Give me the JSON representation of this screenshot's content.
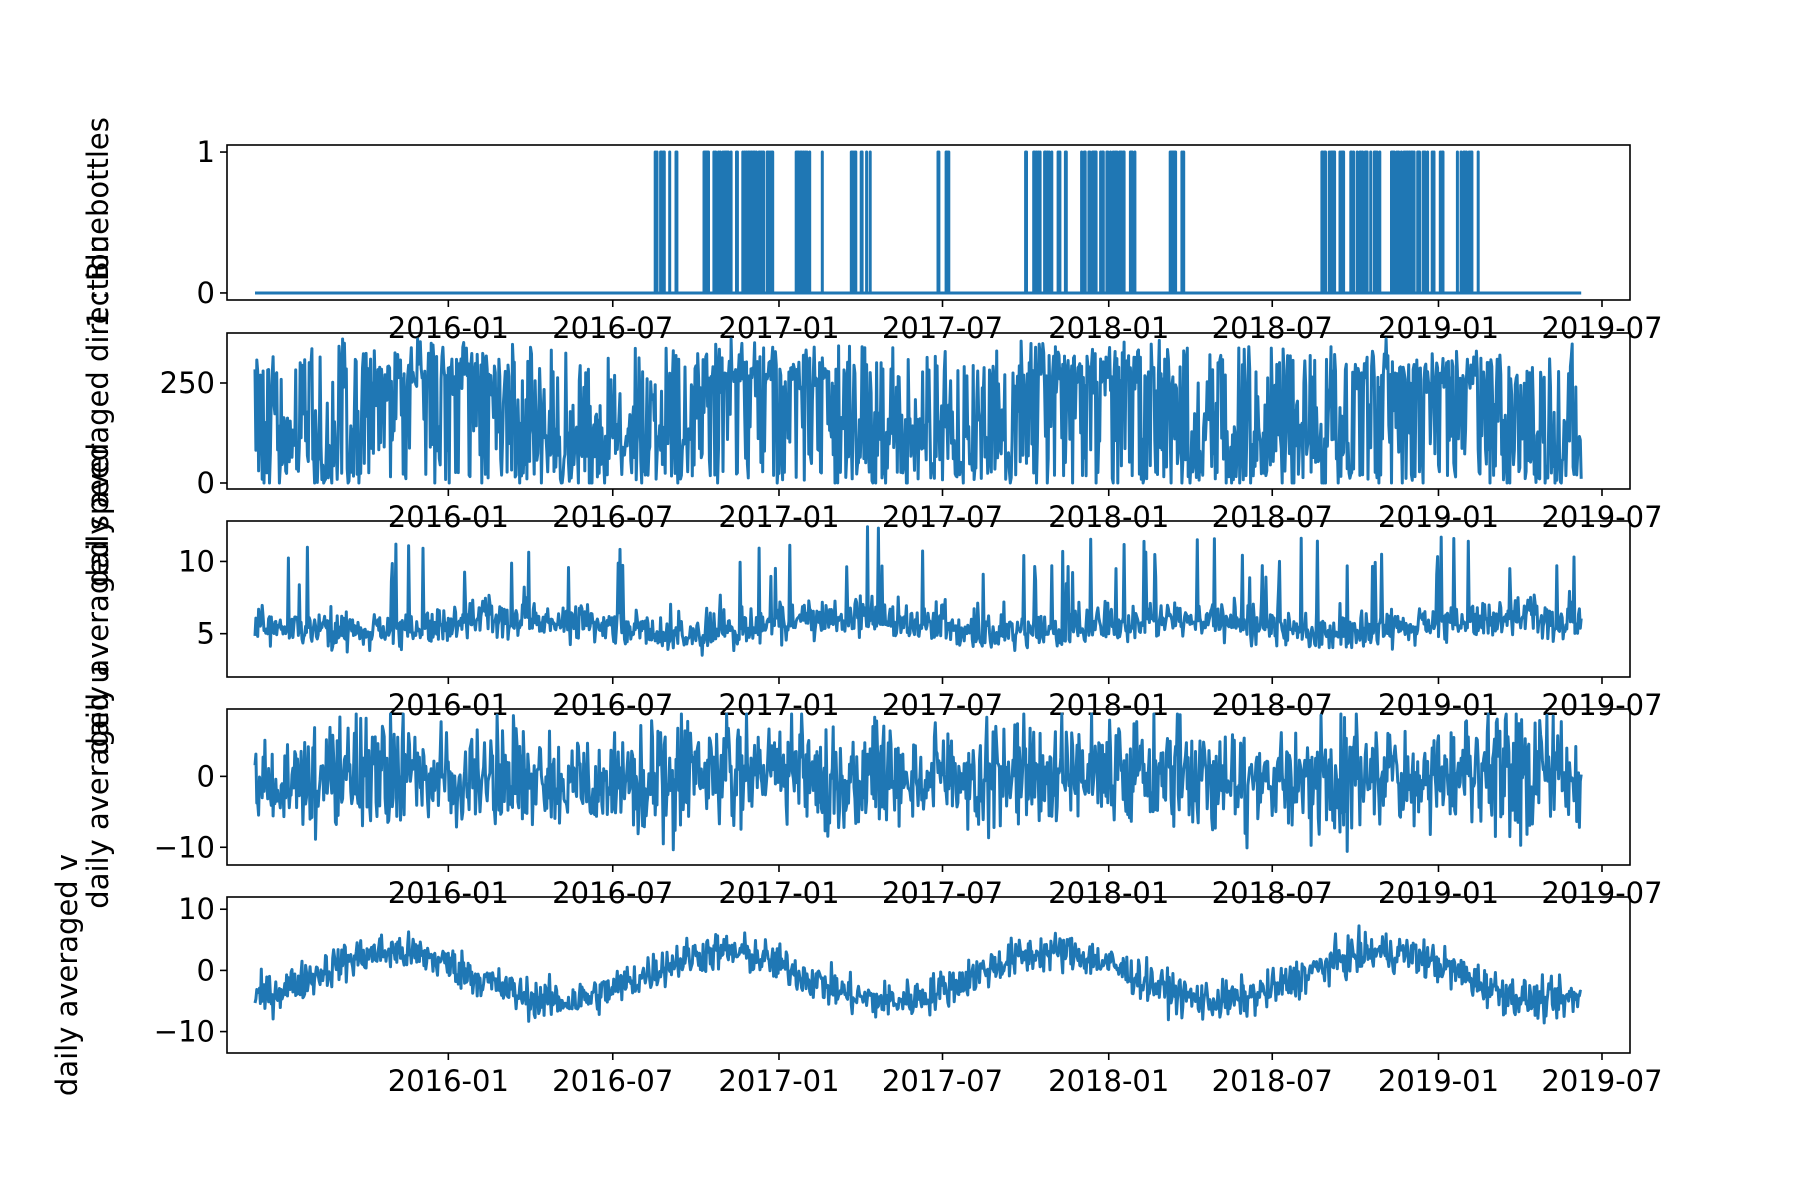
{
  "colors": {
    "line": "#1f77b4",
    "axis": "#000000",
    "background": "#ffffff"
  },
  "x_axis": {
    "type": "date",
    "range": [
      "2015-05-01",
      "2019-08-01"
    ],
    "ticks": [
      "2016-01",
      "2016-07",
      "2017-01",
      "2017-07",
      "2018-01",
      "2018-07",
      "2019-01",
      "2019-07"
    ],
    "tick_dates": [
      "2016-01-01",
      "2016-07-01",
      "2017-01-01",
      "2017-07-01",
      "2018-01-01",
      "2018-07-01",
      "2019-01-01",
      "2019-07-01"
    ],
    "data_start": "2015-06-01",
    "data_end": "2019-06-08"
  },
  "chart_data": [
    {
      "type": "line",
      "ylabel": "1 : Bluebottles",
      "ylim": [
        -0.05,
        1.05
      ],
      "yticks": [
        0,
        1
      ],
      "ytick_labels": [
        "0",
        "1"
      ],
      "style": "binary",
      "y_min": 0,
      "y_max": 1,
      "event_groups": [
        [
          "2016-08-17",
          "2016-09-10"
        ],
        [
          "2016-10-10",
          "2016-12-25"
        ],
        [
          "2017-01-20",
          "2017-02-18"
        ],
        [
          "2017-03-22",
          "2017-04-12"
        ],
        [
          "2017-06-26",
          "2017-07-08"
        ],
        [
          "2017-10-01",
          "2017-11-15"
        ],
        [
          "2017-12-02",
          "2018-01-30"
        ],
        [
          "2018-03-10",
          "2018-03-25"
        ],
        [
          "2018-08-25",
          "2018-10-28"
        ],
        [
          "2018-11-10",
          "2019-01-06"
        ],
        [
          "2019-01-22",
          "2019-02-14"
        ]
      ]
    },
    {
      "type": "line",
      "ylabel": "daily averaged direction",
      "ylim": [
        -15,
        375
      ],
      "yticks": [
        0,
        250
      ],
      "ytick_labels": [
        "0",
        "250"
      ],
      "style": "direction",
      "y_min": 0,
      "y_max": 360
    },
    {
      "type": "line",
      "ylabel": "daily averaged speed",
      "ylim": [
        2,
        12.8
      ],
      "yticks": [
        5,
        10
      ],
      "ytick_labels": [
        "5",
        "10"
      ],
      "style": "speed",
      "y_min": 2.2,
      "y_max": 12.4
    },
    {
      "type": "line",
      "ylabel": "daily averaged u",
      "ylim": [
        -12.5,
        9.5
      ],
      "yticks": [
        -10,
        0
      ],
      "ytick_labels": [
        "−10",
        "0"
      ],
      "style": "u",
      "y_min": -12,
      "y_max": 8.8
    },
    {
      "type": "line",
      "ylabel": "daily averaged v",
      "ylim": [
        -13.5,
        12
      ],
      "yticks": [
        -10,
        0,
        10
      ],
      "ytick_labels": [
        "−10",
        "0",
        "10"
      ],
      "style": "v",
      "y_min": -12.5,
      "y_max": 11
    }
  ]
}
